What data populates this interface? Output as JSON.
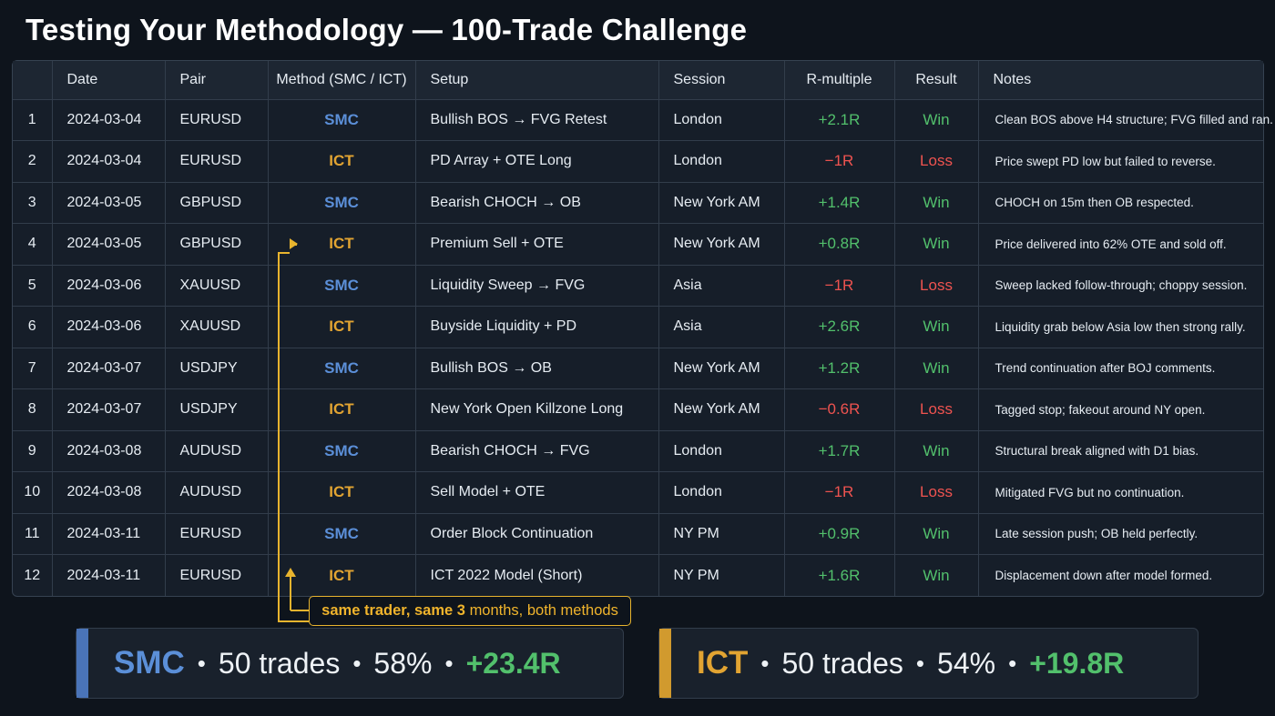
{
  "title": "Testing Your Methodology — 100-Trade Challenge",
  "columns": {
    "num": "",
    "date": "Date",
    "pair": "Pair",
    "method": "Method (SMC / ICT)",
    "setup": "Setup",
    "session": "Session",
    "r": "R-multiple",
    "result": "Result",
    "notes": "Notes"
  },
  "rows": [
    {
      "num": "1",
      "date": "2024-03-04",
      "pair": "EURUSD",
      "method": "SMC",
      "setup": "Bullish BOS → FVG Retest",
      "session": "London",
      "r": "+2.1R",
      "result": "Win",
      "notes": "Clean BOS above H4 structure; FVG filled and ran."
    },
    {
      "num": "2",
      "date": "2024-03-04",
      "pair": "EURUSD",
      "method": "ICT",
      "setup": "PD Array + OTE Long",
      "session": "London",
      "r": "−1R",
      "result": "Loss",
      "notes": "Price swept PD low but failed to reverse."
    },
    {
      "num": "3",
      "date": "2024-03-05",
      "pair": "GBPUSD",
      "method": "SMC",
      "setup": "Bearish CHOCH → OB",
      "session": "New York AM",
      "r": "+1.4R",
      "result": "Win",
      "notes": "CHOCH on 15m then OB respected."
    },
    {
      "num": "4",
      "date": "2024-03-05",
      "pair": "GBPUSD",
      "method": "ICT",
      "setup": "Premium Sell + OTE",
      "session": "New York AM",
      "r": "+0.8R",
      "result": "Win",
      "notes": "Price delivered into 62% OTE and sold off."
    },
    {
      "num": "5",
      "date": "2024-03-06",
      "pair": "XAUUSD",
      "method": "SMC",
      "setup": "Liquidity Sweep → FVG",
      "session": "Asia",
      "r": "−1R",
      "result": "Loss",
      "notes": "Sweep lacked follow-through; choppy session."
    },
    {
      "num": "6",
      "date": "2024-03-06",
      "pair": "XAUUSD",
      "method": "ICT",
      "setup": "Buyside Liquidity + PD",
      "session": "Asia",
      "r": "+2.6R",
      "result": "Win",
      "notes": "Liquidity grab below Asia low then strong rally."
    },
    {
      "num": "7",
      "date": "2024-03-07",
      "pair": "USDJPY",
      "method": "SMC",
      "setup": "Bullish BOS → OB",
      "session": "New York AM",
      "r": "+1.2R",
      "result": "Win",
      "notes": "Trend continuation after BOJ comments."
    },
    {
      "num": "8",
      "date": "2024-03-07",
      "pair": "USDJPY",
      "method": "ICT",
      "setup": "New York Open Killzone Long",
      "session": "New York AM",
      "r": "−0.6R",
      "result": "Loss",
      "notes": "Tagged stop; fakeout around NY open."
    },
    {
      "num": "9",
      "date": "2024-03-08",
      "pair": "AUDUSD",
      "method": "SMC",
      "setup": "Bearish CHOCH → FVG",
      "session": "London",
      "r": "+1.7R",
      "result": "Win",
      "notes": "Structural break aligned with D1 bias."
    },
    {
      "num": "10",
      "date": "2024-03-08",
      "pair": "AUDUSD",
      "method": "ICT",
      "setup": "Sell Model + OTE",
      "session": "London",
      "r": "−1R",
      "result": "Loss",
      "notes": "Mitigated FVG but no continuation."
    },
    {
      "num": "11",
      "date": "2024-03-11",
      "pair": "EURUSD",
      "method": "SMC",
      "setup": "Order Block Continuation",
      "session": "NY PM",
      "r": "+0.9R",
      "result": "Win",
      "notes": "Late session push; OB held perfectly."
    },
    {
      "num": "12",
      "date": "2024-03-11",
      "pair": "EURUSD",
      "method": "ICT",
      "setup": "ICT 2022 Model (Short)",
      "session": "NY PM",
      "r": "+1.6R",
      "result": "Win",
      "notes": "Displacement down after model formed."
    }
  ],
  "annotation": {
    "part1": "same trader, same",
    "part2": "3",
    "part3": "months, both methods"
  },
  "summary": [
    {
      "name": "SMC",
      "trades": "50 trades",
      "rate": "58%",
      "r": "+23.4R",
      "color": "#5b8fd8"
    },
    {
      "name": "ICT",
      "trades": "50 trades",
      "rate": "54%",
      "r": "+19.8R",
      "color": "#e2a432"
    }
  ],
  "colors": {
    "smc": "#5b8fd8",
    "ict": "#e2a432",
    "win": "#52c06c",
    "loss": "#ef5350",
    "annotation": "#e8b42e",
    "background": "#0e141c"
  }
}
